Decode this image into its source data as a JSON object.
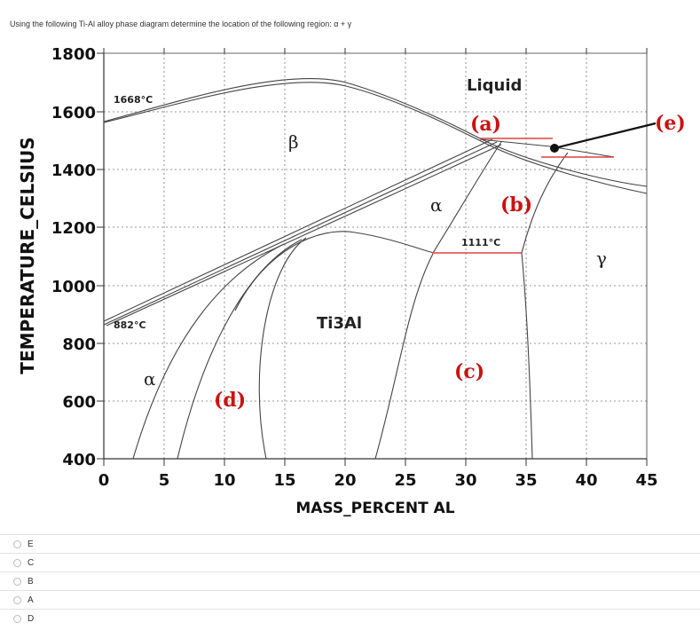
{
  "question": {
    "text": "Using the following Ti-Al alloy phase diagram determine the location of the following region: α + γ"
  },
  "diagram": {
    "x_axis_title": "MASS_PERCENT AL",
    "y_axis_title": "TEMPERATURE_CELSIUS",
    "x_ticks": [
      "0",
      "5",
      "10",
      "15",
      "20",
      "25",
      "30",
      "35",
      "40",
      "45"
    ],
    "y_ticks": [
      "1800",
      "1600",
      "1400",
      "1200",
      "1000",
      "800",
      "600",
      "400"
    ],
    "annotations": {
      "t1668": "1668°C",
      "t882": "882°C",
      "t1111": "1111°C"
    },
    "phases": {
      "liquid": "Liquid",
      "beta": "β",
      "alpha_high": "α",
      "alpha_low": "α",
      "ti3al": "Ti3Al",
      "gamma": "γ"
    },
    "regions": {
      "a": "(a)",
      "b": "(b)",
      "c": "(c)",
      "d": "(d)",
      "e": "(e)"
    }
  },
  "options": [
    {
      "label": "E"
    },
    {
      "label": "C"
    },
    {
      "label": "B"
    },
    {
      "label": "A"
    },
    {
      "label": "D"
    }
  ]
}
